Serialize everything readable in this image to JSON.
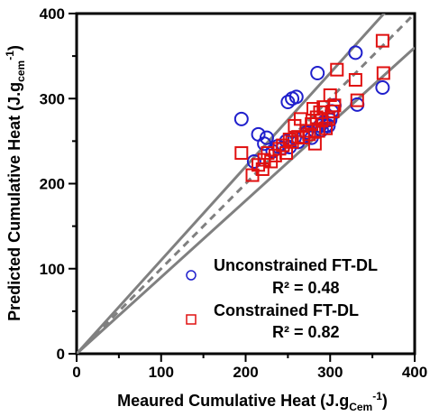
{
  "chart_data": {
    "type": "scatter",
    "xlabel": "Meaured Cumulative Heat (J.g",
    "xlabel_sub": "Cem",
    "xlabel_sup": "-1",
    "xlabel_close": ")",
    "ylabel": "Predicted Cumulative Heat (J.g",
    "ylabel_sub": "cem",
    "ylabel_sup": "-1",
    "ylabel_close": ")",
    "xlim": [
      0,
      400
    ],
    "ylim": [
      0,
      400
    ],
    "xticks": [
      "0",
      "100",
      "200",
      "300",
      "400"
    ],
    "yticks": [
      "0",
      "100",
      "200",
      "300",
      "400"
    ],
    "grid": false,
    "legend_position": "bottom-right",
    "reference_lines": [
      {
        "kind": "identity",
        "style": "dashed",
        "color": "#808080",
        "slope": 1
      },
      {
        "kind": "upper-bound",
        "style": "solid",
        "color": "#808080",
        "slope": 1.1
      },
      {
        "kind": "lower-bound",
        "style": "solid",
        "color": "#808080",
        "slope": 0.9
      }
    ],
    "series": [
      {
        "name": "Unconstrained FT-DL",
        "stat": "R² = 0.48",
        "marker": "circle",
        "color": "#1f1fcc",
        "x": [
          195,
          210,
          215,
          222,
          225,
          232,
          238,
          244,
          248,
          250,
          252,
          255,
          258,
          260,
          262,
          268,
          272,
          278,
          282,
          285,
          288,
          290,
          292,
          295,
          298,
          300,
          302,
          305,
          330,
          332,
          362
        ],
        "y": [
          276,
          226,
          258,
          247,
          254,
          238,
          244,
          242,
          250,
          296,
          243,
          300,
          254,
          302,
          249,
          255,
          260,
          254,
          262,
          330,
          268,
          263,
          272,
          268,
          268,
          275,
          285,
          292,
          354,
          293,
          313
        ]
      },
      {
        "name": "Constrained FT-DL",
        "stat": "R² = 0.82",
        "marker": "square",
        "color": "#e01010",
        "x": [
          195,
          208,
          215,
          220,
          222,
          226,
          230,
          235,
          240,
          244,
          248,
          252,
          255,
          258,
          262,
          265,
          268,
          272,
          275,
          278,
          280,
          282,
          284,
          286,
          288,
          290,
          292,
          295,
          298,
          300,
          303,
          305,
          308,
          330,
          332,
          362,
          363
        ],
        "y": [
          236,
          210,
          222,
          217,
          228,
          236,
          226,
          233,
          241,
          245,
          236,
          252,
          249,
          268,
          255,
          276,
          254,
          262,
          258,
          270,
          288,
          247,
          278,
          262,
          284,
          274,
          290,
          265,
          276,
          304,
          285,
          292,
          334,
          322,
          298,
          368,
          330
        ]
      }
    ]
  }
}
